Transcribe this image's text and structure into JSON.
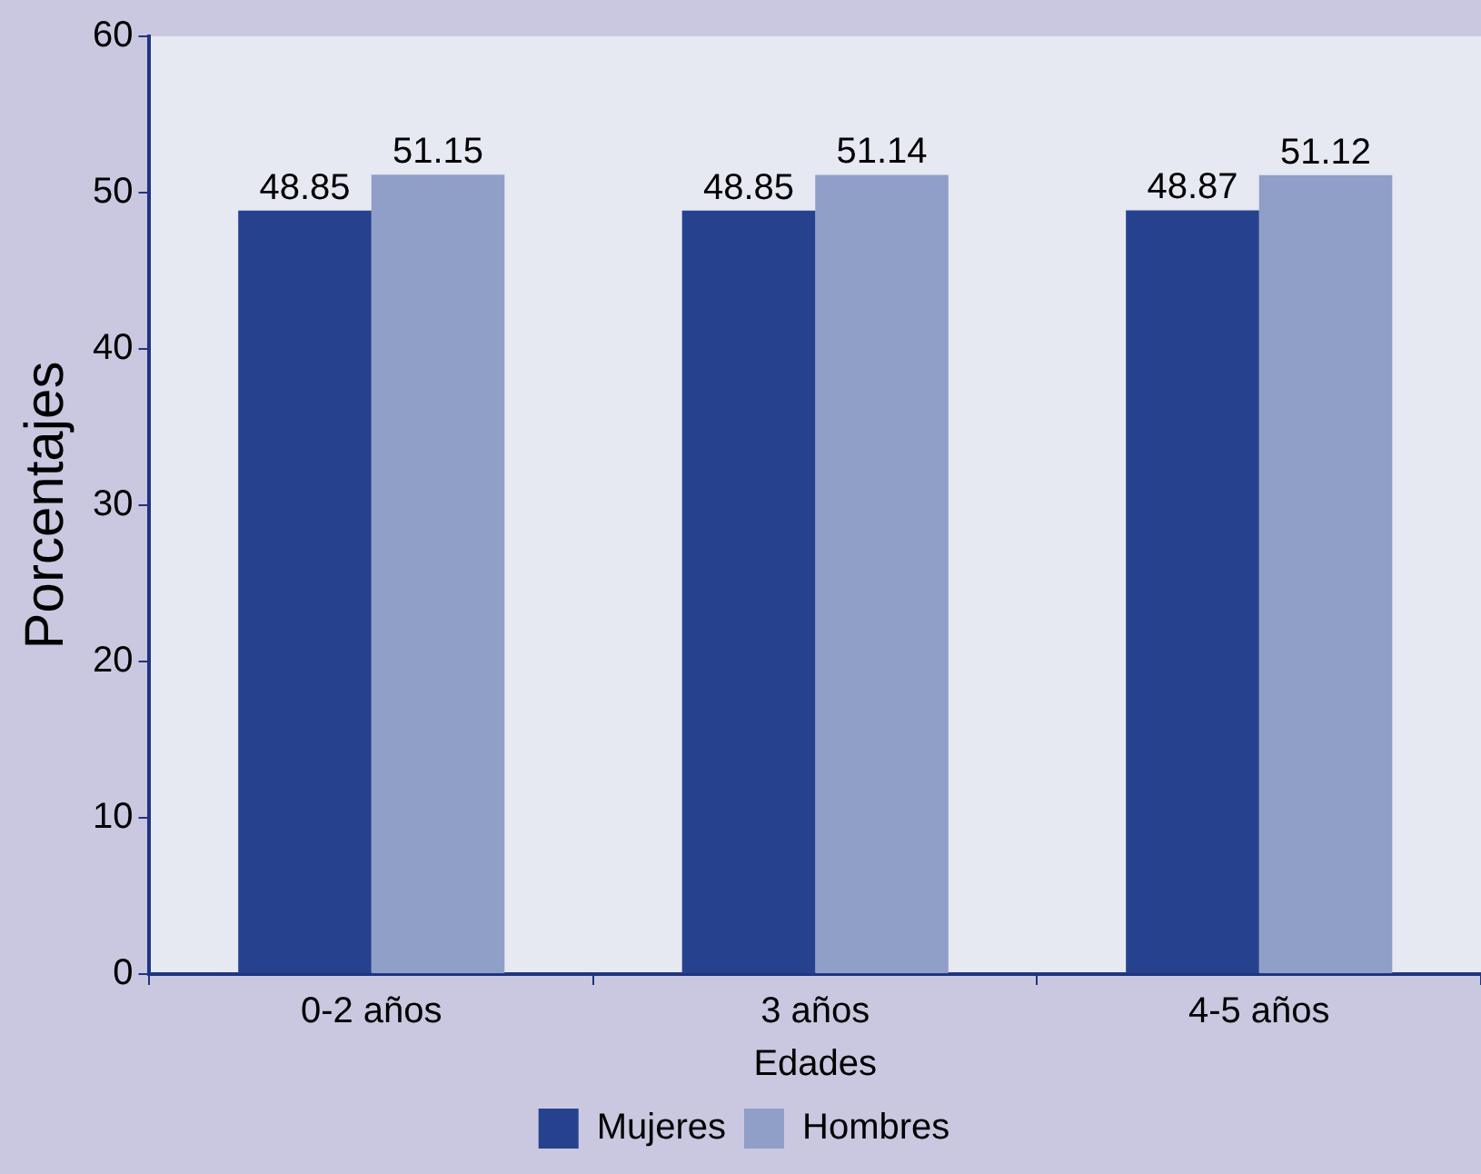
{
  "chart_data": {
    "type": "bar",
    "xlabel": "Edades",
    "ylabel": "Porcentajes",
    "categories": [
      "0-2 años",
      "3 años",
      "4-5 años"
    ],
    "series": [
      {
        "name": "Mujeres",
        "color": "#26428f",
        "values": [
          48.85,
          48.85,
          48.87
        ]
      },
      {
        "name": "Hombres",
        "color": "#8f9fc8",
        "values": [
          51.15,
          51.14,
          51.12
        ]
      }
    ],
    "ylim": [
      0,
      60
    ],
    "yticks": [
      0,
      10,
      20,
      30,
      40,
      50,
      60
    ],
    "grid": false,
    "legend": "bottom",
    "data_labels": true
  }
}
